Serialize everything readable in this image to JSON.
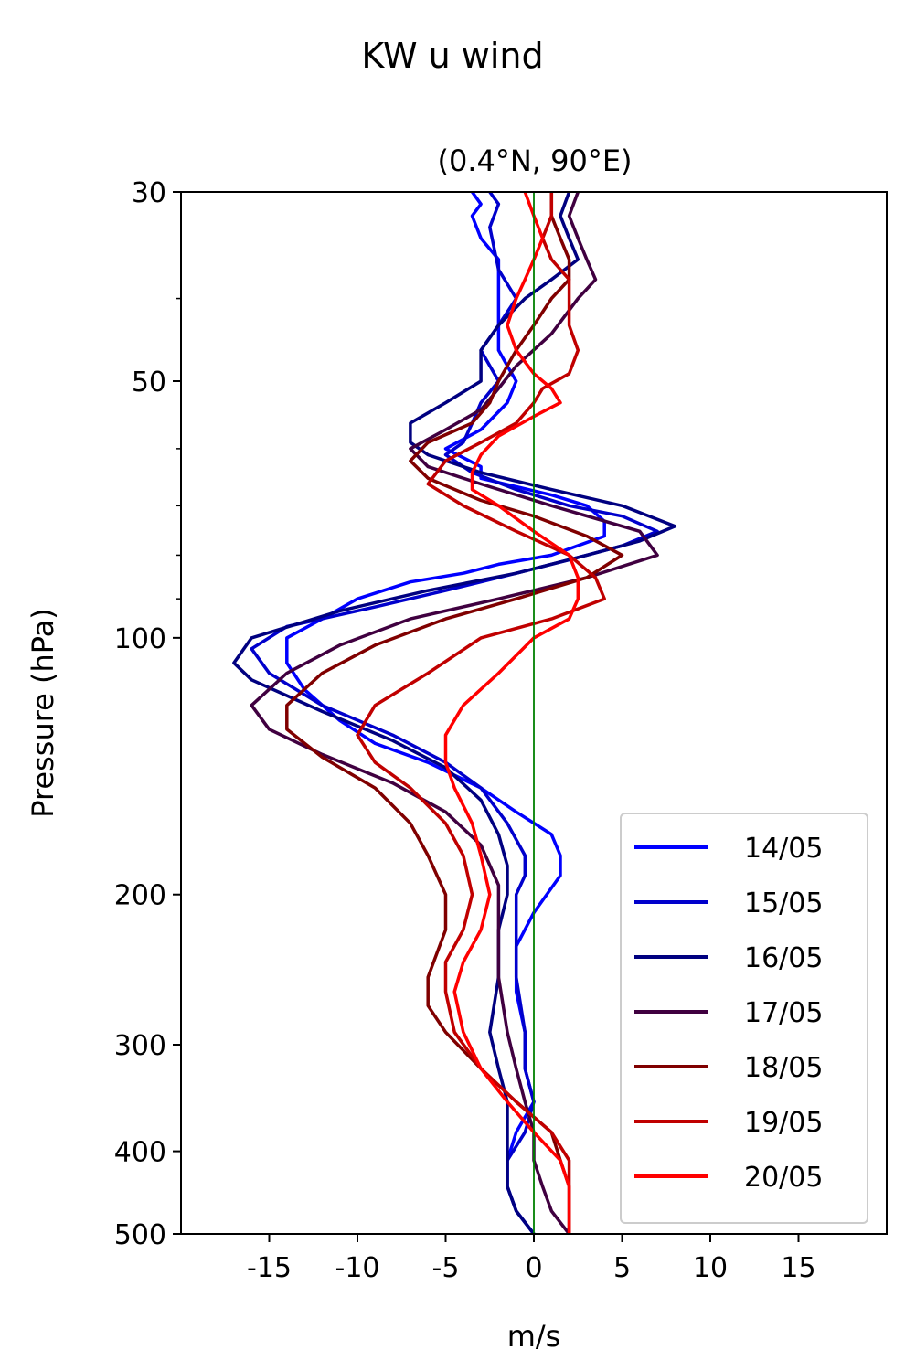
{
  "chart_data": {
    "type": "line",
    "title": "KW u wind",
    "subtitle": "(0.4°N, 90°E)",
    "xlabel": "m/s",
    "ylabel": "Pressure (hPa)",
    "xlim": [
      -20,
      20
    ],
    "ylim": [
      500,
      30
    ],
    "yscale": "log",
    "xticks": [
      -15,
      -10,
      -5,
      0,
      5,
      10,
      15
    ],
    "xtick_labels": [
      "-15",
      "-10",
      "-5",
      "0",
      "5",
      "10",
      "15"
    ],
    "yticks": [
      30,
      50,
      100,
      200,
      300,
      400,
      500
    ],
    "ytick_labels": [
      "30",
      "50",
      "100",
      "200",
      "300",
      "400",
      "500"
    ],
    "yminor_ticks": [
      40,
      60,
      70,
      80,
      90
    ],
    "reference_line": {
      "x": 0,
      "color": "#008000"
    },
    "legend": "lower-right",
    "grid": false,
    "series": [
      {
        "name": "14/05",
        "color": "#0000FF",
        "points": [
          [
            -3.5,
            30
          ],
          [
            -3,
            31
          ],
          [
            -3.5,
            32
          ],
          [
            -3,
            34
          ],
          [
            -2,
            36
          ],
          [
            -2,
            40
          ],
          [
            -2,
            44
          ],
          [
            -2,
            46
          ],
          [
            -1.5,
            48
          ],
          [
            -1,
            50
          ],
          [
            -1.5,
            53
          ],
          [
            -3,
            57
          ],
          [
            -5,
            60
          ],
          [
            -3,
            63
          ],
          [
            -3,
            65
          ],
          [
            1,
            68
          ],
          [
            3,
            70
          ],
          [
            4,
            73
          ],
          [
            4,
            76
          ],
          [
            1,
            80
          ],
          [
            -2,
            82
          ],
          [
            -4,
            84
          ],
          [
            -7,
            86
          ],
          [
            -10,
            90
          ],
          [
            -12,
            95
          ],
          [
            -14,
            100
          ],
          [
            -14,
            107
          ],
          [
            -13,
            115
          ],
          [
            -11,
            125
          ],
          [
            -9,
            133
          ],
          [
            -6,
            140
          ],
          [
            -3,
            150
          ],
          [
            -1,
            160
          ],
          [
            1,
            170
          ],
          [
            1.5,
            180
          ],
          [
            1.5,
            190
          ],
          [
            0,
            210
          ],
          [
            -1,
            230
          ],
          [
            -1,
            260
          ],
          [
            -0.5,
            290
          ],
          [
            -0.5,
            320
          ],
          [
            0,
            350
          ],
          [
            -1,
            380
          ],
          [
            -1.5,
            410
          ],
          [
            -1.5,
            440
          ],
          [
            -1,
            470
          ],
          [
            0,
            500
          ]
        ]
      },
      {
        "name": "15/05",
        "color": "#0000CC",
        "points": [
          [
            -2.5,
            30
          ],
          [
            -2,
            31
          ],
          [
            -2.5,
            33
          ],
          [
            -2,
            37
          ],
          [
            -1,
            40
          ],
          [
            -2,
            43
          ],
          [
            -3,
            46
          ],
          [
            -2,
            50
          ],
          [
            -3,
            53
          ],
          [
            -3.5,
            56
          ],
          [
            -4,
            59
          ],
          [
            -5,
            61
          ],
          [
            -3.5,
            64
          ],
          [
            -1,
            67
          ],
          [
            2,
            70
          ],
          [
            5,
            72
          ],
          [
            7,
            75
          ],
          [
            5,
            78
          ],
          [
            2,
            81
          ],
          [
            -1,
            84
          ],
          [
            -5,
            88
          ],
          [
            -9,
            92
          ],
          [
            -14,
            97
          ],
          [
            -16,
            103
          ],
          [
            -15,
            110
          ],
          [
            -12,
            120
          ],
          [
            -8,
            130
          ],
          [
            -5,
            140
          ],
          [
            -3,
            150
          ],
          [
            -1.5,
            165
          ],
          [
            -0.5,
            180
          ],
          [
            -0.5,
            190
          ],
          [
            -1,
            200
          ],
          [
            -1,
            220
          ],
          [
            -1,
            250
          ],
          [
            -0.5,
            290
          ],
          [
            -0.5,
            320
          ],
          [
            0,
            350
          ],
          [
            -0.5,
            380
          ],
          [
            -1.5,
            410
          ],
          [
            -1.5,
            440
          ],
          [
            -1,
            470
          ],
          [
            0,
            500
          ]
        ]
      },
      {
        "name": "16/05",
        "color": "#000080",
        "points": [
          [
            2,
            30
          ],
          [
            1.5,
            32
          ],
          [
            2,
            34
          ],
          [
            2.5,
            36
          ],
          [
            1,
            38
          ],
          [
            -0.5,
            40
          ],
          [
            -2,
            43
          ],
          [
            -3,
            46
          ],
          [
            -3,
            50
          ],
          [
            -5,
            53
          ],
          [
            -7,
            56
          ],
          [
            -7,
            59
          ],
          [
            -6,
            61
          ],
          [
            -3,
            64
          ],
          [
            1,
            67
          ],
          [
            5,
            70
          ],
          [
            8,
            74
          ],
          [
            6,
            77
          ],
          [
            3,
            80
          ],
          [
            -1,
            84
          ],
          [
            -6,
            88
          ],
          [
            -11,
            93
          ],
          [
            -16,
            100
          ],
          [
            -17,
            107
          ],
          [
            -16,
            112
          ],
          [
            -12,
            122
          ],
          [
            -8,
            132
          ],
          [
            -5,
            142
          ],
          [
            -3,
            155
          ],
          [
            -2,
            170
          ],
          [
            -1.5,
            185
          ],
          [
            -1.5,
            200
          ],
          [
            -2,
            220
          ],
          [
            -2,
            250
          ],
          [
            -2.5,
            290
          ],
          [
            -2,
            320
          ],
          [
            -1.5,
            350
          ],
          [
            -1.5,
            380
          ],
          [
            -1.5,
            410
          ],
          [
            -1.5,
            440
          ],
          [
            -1,
            470
          ],
          [
            0,
            500
          ]
        ]
      },
      {
        "name": "17/05",
        "color": "#400040",
        "points": [
          [
            2.5,
            30
          ],
          [
            2,
            32
          ],
          [
            2.5,
            34
          ],
          [
            3,
            36
          ],
          [
            3.5,
            38
          ],
          [
            2.5,
            40
          ],
          [
            1,
            44
          ],
          [
            -1,
            48
          ],
          [
            -2,
            51
          ],
          [
            -3,
            54
          ],
          [
            -5,
            57
          ],
          [
            -7,
            60
          ],
          [
            -6,
            63
          ],
          [
            -3,
            66
          ],
          [
            1,
            70
          ],
          [
            6,
            75
          ],
          [
            7,
            80
          ],
          [
            3,
            85
          ],
          [
            -2,
            90
          ],
          [
            -7,
            95
          ],
          [
            -11,
            102
          ],
          [
            -14,
            110
          ],
          [
            -16,
            120
          ],
          [
            -15,
            128
          ],
          [
            -12,
            137
          ],
          [
            -8,
            148
          ],
          [
            -5,
            160
          ],
          [
            -3,
            175
          ],
          [
            -2,
            195
          ],
          [
            -2,
            220
          ],
          [
            -2,
            250
          ],
          [
            -1.5,
            290
          ],
          [
            -1,
            320
          ],
          [
            -0.5,
            350
          ],
          [
            0,
            380
          ],
          [
            0,
            410
          ],
          [
            0.5,
            440
          ],
          [
            1,
            470
          ],
          [
            2,
            500
          ]
        ]
      },
      {
        "name": "18/05",
        "color": "#800000",
        "points": [
          [
            1,
            30
          ],
          [
            1,
            32
          ],
          [
            1.5,
            34
          ],
          [
            2,
            36
          ],
          [
            2,
            38
          ],
          [
            1,
            40
          ],
          [
            0,
            43
          ],
          [
            -1,
            46
          ],
          [
            -2,
            50
          ],
          [
            -2.5,
            53
          ],
          [
            -3.5,
            56
          ],
          [
            -6,
            59
          ],
          [
            -7,
            62
          ],
          [
            -6,
            65
          ],
          [
            -3,
            69
          ],
          [
            0,
            72
          ],
          [
            3,
            76
          ],
          [
            5,
            80
          ],
          [
            3,
            85
          ],
          [
            -1,
            90
          ],
          [
            -5,
            95
          ],
          [
            -9,
            102
          ],
          [
            -12,
            110
          ],
          [
            -14,
            120
          ],
          [
            -14,
            128
          ],
          [
            -12,
            138
          ],
          [
            -9,
            150
          ],
          [
            -7,
            165
          ],
          [
            -6,
            180
          ],
          [
            -5,
            200
          ],
          [
            -5,
            220
          ],
          [
            -6,
            250
          ],
          [
            -6,
            270
          ],
          [
            -5,
            290
          ],
          [
            -3,
            320
          ],
          [
            -1,
            350
          ],
          [
            1,
            380
          ],
          [
            1.5,
            410
          ],
          [
            2,
            440
          ],
          [
            2,
            470
          ],
          [
            2,
            500
          ]
        ]
      },
      {
        "name": "19/05",
        "color": "#C00000",
        "points": [
          [
            1,
            30
          ],
          [
            1,
            32
          ],
          [
            0.5,
            34
          ],
          [
            1,
            36
          ],
          [
            2,
            38
          ],
          [
            2,
            40
          ],
          [
            2,
            43
          ],
          [
            2.5,
            46
          ],
          [
            2,
            49
          ],
          [
            0.5,
            51
          ],
          [
            0,
            53
          ],
          [
            -1,
            56
          ],
          [
            -3,
            59
          ],
          [
            -5,
            62
          ],
          [
            -6,
            66
          ],
          [
            -4,
            70
          ],
          [
            -1,
            75
          ],
          [
            2,
            80
          ],
          [
            3.5,
            85
          ],
          [
            4,
            90
          ],
          [
            1,
            95
          ],
          [
            -3,
            100
          ],
          [
            -6,
            110
          ],
          [
            -9,
            120
          ],
          [
            -10,
            130
          ],
          [
            -9,
            140
          ],
          [
            -7,
            150
          ],
          [
            -5,
            165
          ],
          [
            -4,
            180
          ],
          [
            -3.5,
            200
          ],
          [
            -4,
            220
          ],
          [
            -5,
            240
          ],
          [
            -5,
            260
          ],
          [
            -4.5,
            290
          ],
          [
            -3,
            320
          ],
          [
            -1,
            350
          ],
          [
            1,
            380
          ],
          [
            2,
            410
          ],
          [
            2,
            440
          ],
          [
            2,
            470
          ],
          [
            2,
            500
          ]
        ]
      },
      {
        "name": "20/05",
        "color": "#FF0000",
        "points": [
          [
            -0.5,
            30
          ],
          [
            0,
            32
          ],
          [
            0.5,
            34
          ],
          [
            0,
            36
          ],
          [
            -0.5,
            38
          ],
          [
            -1,
            40
          ],
          [
            -1.5,
            43
          ],
          [
            -1,
            46
          ],
          [
            0,
            49
          ],
          [
            1,
            51
          ],
          [
            1.5,
            53
          ],
          [
            0,
            55
          ],
          [
            -2,
            58
          ],
          [
            -3,
            61
          ],
          [
            -3.5,
            64
          ],
          [
            -3.5,
            67
          ],
          [
            -2,
            70
          ],
          [
            0,
            75
          ],
          [
            2,
            80
          ],
          [
            2.5,
            85
          ],
          [
            2.5,
            90
          ],
          [
            2,
            95
          ],
          [
            0,
            100
          ],
          [
            -2,
            110
          ],
          [
            -4,
            120
          ],
          [
            -5,
            130
          ],
          [
            -5,
            140
          ],
          [
            -4.5,
            150
          ],
          [
            -3.5,
            165
          ],
          [
            -3,
            180
          ],
          [
            -2.5,
            200
          ],
          [
            -3,
            220
          ],
          [
            -4,
            240
          ],
          [
            -4.5,
            260
          ],
          [
            -4,
            290
          ],
          [
            -3,
            320
          ],
          [
            -1.5,
            350
          ],
          [
            0,
            380
          ],
          [
            1.5,
            410
          ],
          [
            2,
            440
          ],
          [
            2,
            470
          ],
          [
            2,
            500
          ]
        ]
      }
    ]
  }
}
